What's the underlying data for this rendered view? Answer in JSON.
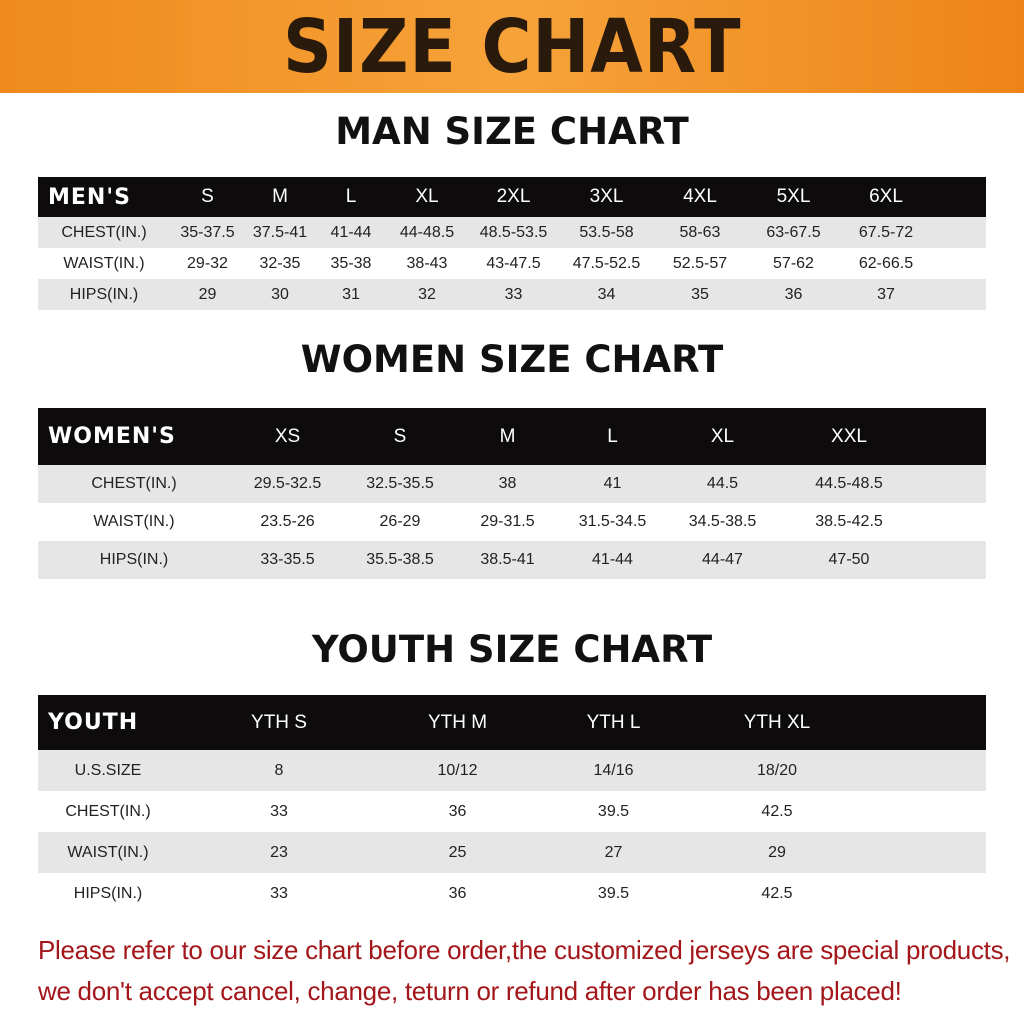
{
  "title": "SIZE CHART",
  "men": {
    "title": "MAN SIZE CHART",
    "header": "MEN'S",
    "sizes": [
      "S",
      "M",
      "L",
      "XL",
      "2XL",
      "3XL",
      "4XL",
      "5XL",
      "6XL"
    ],
    "rows": [
      {
        "label": "CHEST(IN.)",
        "values": [
          "35-37.5",
          "37.5-41",
          "41-44",
          "44-48.5",
          "48.5-53.5",
          "53.5-58",
          "58-63",
          "63-67.5",
          "67.5-72"
        ]
      },
      {
        "label": "WAIST(IN.)",
        "values": [
          "29-32",
          "32-35",
          "35-38",
          "38-43",
          "43-47.5",
          "47.5-52.5",
          "52.5-57",
          "57-62",
          "62-66.5"
        ]
      },
      {
        "label": "HIPS(IN.)",
        "values": [
          "29",
          "30",
          "31",
          "32",
          "33",
          "34",
          "35",
          "36",
          "37"
        ]
      }
    ]
  },
  "women": {
    "title": "WOMEN SIZE CHART",
    "header": "WOMEN'S",
    "sizes": [
      "XS",
      "S",
      "M",
      "L",
      "XL",
      "XXL"
    ],
    "rows": [
      {
        "label": "CHEST(IN.)",
        "values": [
          "29.5-32.5",
          "32.5-35.5",
          "38",
          "41",
          "44.5",
          "44.5-48.5"
        ]
      },
      {
        "label": "WAIST(IN.)",
        "values": [
          "23.5-26",
          "26-29",
          "29-31.5",
          "31.5-34.5",
          "34.5-38.5",
          "38.5-42.5"
        ]
      },
      {
        "label": "HIPS(IN.)",
        "values": [
          "33-35.5",
          "35.5-38.5",
          "38.5-41",
          "41-44",
          "44-47",
          "47-50"
        ]
      }
    ]
  },
  "youth": {
    "title": "YOUTH SIZE CHART",
    "header": "YOUTH",
    "sizes": [
      "YTH S",
      "YTH M",
      "YTH L",
      "YTH XL"
    ],
    "rows": [
      {
        "label": "U.S.SIZE",
        "values": [
          "8",
          "10/12",
          "14/16",
          "18/20"
        ]
      },
      {
        "label": "CHEST(IN.)",
        "values": [
          "33",
          "36",
          "39.5",
          "42.5"
        ]
      },
      {
        "label": "WAIST(IN.)",
        "values": [
          "23",
          "25",
          "27",
          "29"
        ]
      },
      {
        "label": "HIPS(IN.)",
        "values": [
          "33",
          "36",
          "39.5",
          "42.5"
        ]
      }
    ]
  },
  "notice": [
    "Please refer to our size chart before order,the customized jerseys are special products,",
    "we don't accept cancel, change, teturn or refund after order has been placed!"
  ],
  "colors": {
    "banner": "#f08a1c",
    "header_bg": "#0d0b0b",
    "row_alt": "#e6e6e6",
    "notice": "#a3161a"
  }
}
